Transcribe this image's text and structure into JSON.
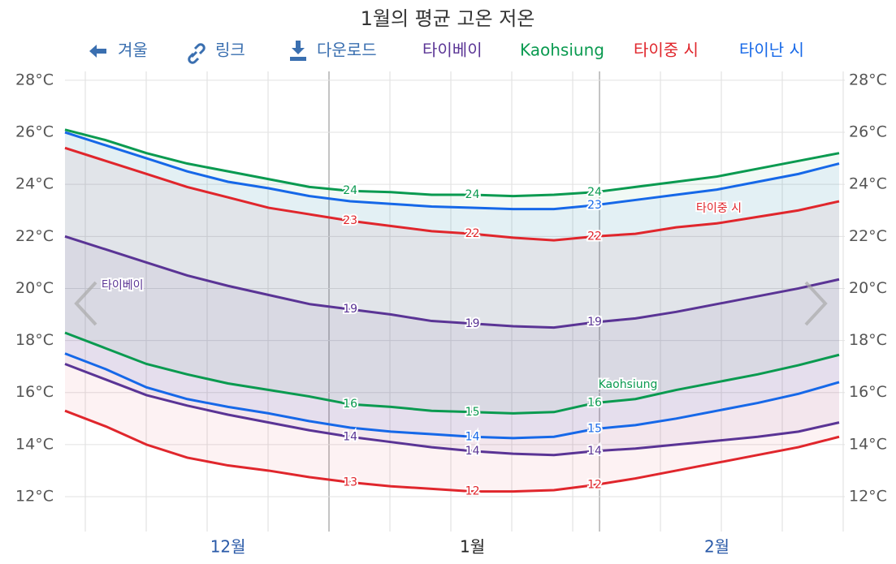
{
  "toolbar": [
    "겨울",
    "링크",
    "다운로드"
  ],
  "chart_data": {
    "type": "line",
    "title": "1월의 평균 고온 저온",
    "categories": [
      null,
      null,
      null,
      null,
      "12월",
      null,
      null,
      null,
      null,
      null,
      "1월",
      null,
      null,
      null,
      null,
      null,
      "2월",
      null,
      null,
      null
    ],
    "ylim": [
      10.66,
      28.34
    ],
    "yticks": [
      {
        "value": 12,
        "label": "12°C"
      },
      {
        "value": 14,
        "label": "14°C"
      },
      {
        "value": 16,
        "label": "16°C"
      },
      {
        "value": 18,
        "label": "18°C"
      },
      {
        "value": 20,
        "label": "20°C"
      },
      {
        "value": 22,
        "label": "22°C"
      },
      {
        "value": 24,
        "label": "24°C"
      },
      {
        "value": 26,
        "label": "26°C"
      },
      {
        "value": 28,
        "label": "28°C"
      }
    ],
    "grid": true,
    "series": [
      {
        "name": "타이베이",
        "color": "#5a3495",
        "high": [
          22.0,
          21.5,
          21.0,
          20.5,
          20.1,
          19.75,
          19.4,
          19.2,
          19.0,
          18.75,
          18.65,
          18.55,
          18.5,
          18.7,
          18.85,
          19.1,
          19.4,
          19.7,
          20.0,
          20.35
        ],
        "high_value_labels": [
          null,
          null,
          null,
          null,
          null,
          null,
          null,
          "19",
          null,
          null,
          "19",
          null,
          null,
          "19",
          null,
          null,
          null,
          null,
          null,
          null
        ],
        "low": [
          17.1,
          16.5,
          15.9,
          15.5,
          15.15,
          14.85,
          14.55,
          14.3,
          14.1,
          13.9,
          13.75,
          13.65,
          13.6,
          13.75,
          13.85,
          14.0,
          14.15,
          14.3,
          14.5,
          14.85
        ],
        "low_value_labels": [
          null,
          null,
          null,
          null,
          null,
          null,
          null,
          "14",
          null,
          null,
          "14",
          null,
          null,
          "14",
          null,
          null,
          null,
          null,
          null,
          null
        ]
      },
      {
        "name": "Kaohsiung",
        "color": "#0a9a50",
        "high": [
          26.1,
          25.7,
          25.2,
          24.8,
          24.5,
          24.2,
          23.9,
          23.75,
          23.7,
          23.6,
          23.6,
          23.55,
          23.6,
          23.7,
          23.9,
          24.1,
          24.3,
          24.6,
          24.9,
          25.2
        ],
        "high_value_labels": [
          null,
          null,
          null,
          null,
          null,
          null,
          null,
          "24",
          null,
          null,
          "24",
          null,
          null,
          "24",
          null,
          null,
          null,
          null,
          null,
          null
        ],
        "low": [
          18.3,
          17.7,
          17.1,
          16.7,
          16.35,
          16.1,
          15.85,
          15.55,
          15.45,
          15.3,
          15.25,
          15.2,
          15.25,
          15.6,
          15.75,
          16.1,
          16.4,
          16.7,
          17.05,
          17.45
        ],
        "low_value_labels": [
          null,
          null,
          null,
          null,
          null,
          null,
          null,
          "16",
          null,
          null,
          "15",
          null,
          null,
          "16",
          null,
          null,
          null,
          null,
          null,
          null
        ]
      },
      {
        "name": "타이중 시",
        "color": "#e0262c",
        "high": [
          25.4,
          24.9,
          24.4,
          23.9,
          23.5,
          23.1,
          22.85,
          22.6,
          22.4,
          22.2,
          22.1,
          21.95,
          21.85,
          22.0,
          22.1,
          22.35,
          22.5,
          22.75,
          23.0,
          23.35
        ],
        "high_value_labels": [
          null,
          null,
          null,
          null,
          null,
          null,
          null,
          "23",
          null,
          null,
          "22",
          null,
          null,
          "22",
          null,
          null,
          null,
          null,
          null,
          null
        ],
        "low": [
          15.3,
          14.7,
          14.0,
          13.5,
          13.2,
          13.0,
          12.75,
          12.55,
          12.4,
          12.3,
          12.2,
          12.2,
          12.25,
          12.45,
          12.7,
          13.0,
          13.3,
          13.6,
          13.9,
          14.3
        ],
        "low_value_labels": [
          null,
          null,
          null,
          null,
          null,
          null,
          null,
          "13",
          null,
          null,
          "12",
          null,
          null,
          "12",
          null,
          null,
          null,
          null,
          null,
          null
        ]
      },
      {
        "name": "타이난 시",
        "color": "#1668e8",
        "high": [
          26.0,
          25.5,
          25.0,
          24.5,
          24.1,
          23.85,
          23.55,
          23.35,
          23.25,
          23.15,
          23.1,
          23.05,
          23.05,
          23.2,
          23.4,
          23.6,
          23.8,
          24.1,
          24.4,
          24.8
        ],
        "high_value_labels": [
          null,
          null,
          null,
          null,
          null,
          null,
          null,
          null,
          null,
          null,
          null,
          null,
          null,
          "23",
          null,
          null,
          null,
          null,
          null,
          null
        ],
        "low": [
          17.5,
          16.9,
          16.2,
          15.75,
          15.45,
          15.2,
          14.9,
          14.65,
          14.5,
          14.4,
          14.3,
          14.25,
          14.3,
          14.6,
          14.75,
          15.0,
          15.3,
          15.6,
          15.95,
          16.4
        ],
        "low_value_labels": [
          null,
          null,
          null,
          null,
          null,
          null,
          null,
          null,
          null,
          null,
          "14",
          null,
          null,
          "15",
          null,
          null,
          null,
          null,
          null,
          null
        ]
      }
    ]
  }
}
